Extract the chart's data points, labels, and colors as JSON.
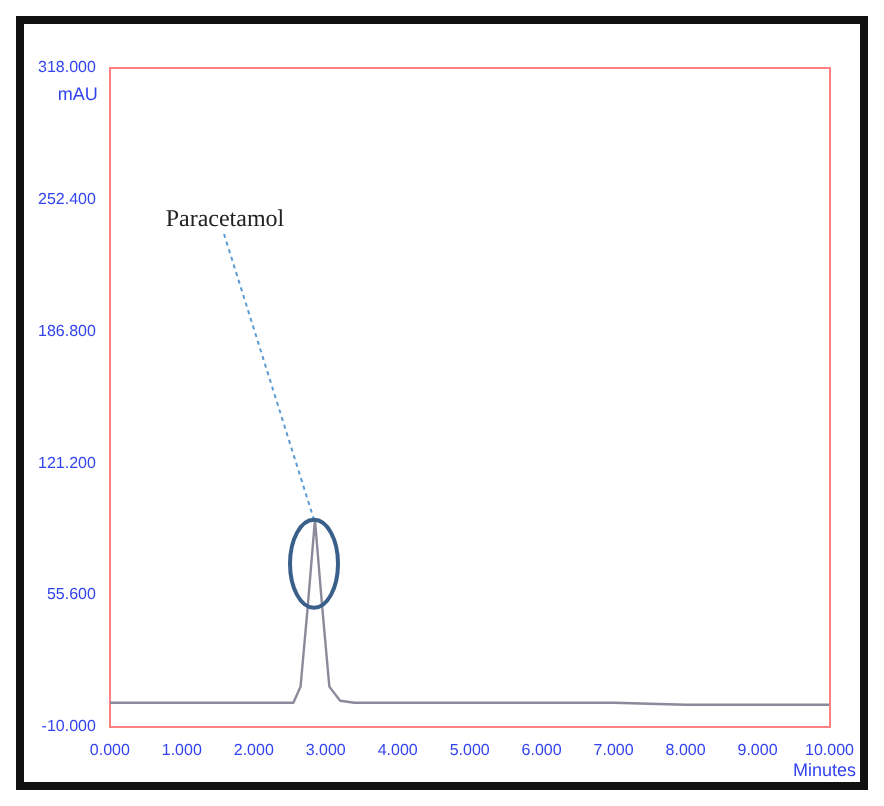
{
  "chart_data": {
    "type": "line",
    "ylabel": "mAU",
    "xlabel": "Minutes",
    "x": [
      0,
      1,
      2,
      2.55,
      2.65,
      2.75,
      2.85,
      2.95,
      3.05,
      3.2,
      3.4,
      5,
      7,
      8,
      10
    ],
    "series": [
      {
        "color": "#8a8a9a",
        "values": [
          2,
          2,
          2,
          2,
          10,
          50,
          93,
          50,
          10,
          3,
          2,
          2,
          2,
          1,
          1
        ]
      }
    ],
    "xlim": [
      0,
      10
    ],
    "xticks": [
      {
        "value": 0,
        "label": "0.000"
      },
      {
        "value": 1,
        "label": "1.000"
      },
      {
        "value": 2,
        "label": "2.000"
      },
      {
        "value": 3,
        "label": "3.000"
      },
      {
        "value": 4,
        "label": "4.000"
      },
      {
        "value": 5,
        "label": "5.000"
      },
      {
        "value": 6,
        "label": "6.000"
      },
      {
        "value": 7,
        "label": "7.000"
      },
      {
        "value": 8,
        "label": "8.000"
      },
      {
        "value": 9,
        "label": "9.000"
      },
      {
        "value": 10,
        "label": "10.000"
      }
    ],
    "ylim": [
      -10,
      318
    ],
    "yticks": [
      {
        "value": -10,
        "label": "-10.000"
      },
      {
        "value": 55.6,
        "label": "55.600"
      },
      {
        "value": 121.2,
        "label": "121.200"
      },
      {
        "value": 186.8,
        "label": "186.800"
      },
      {
        "value": 252.4,
        "label": "252.400"
      },
      {
        "value": 318,
        "label": "318.000"
      }
    ],
    "annotations": [
      {
        "text": "Paracetamol",
        "x": 2.85,
        "y": 93
      }
    ],
    "grid": false,
    "legend": false,
    "marker": "none",
    "line_style": "solid"
  }
}
